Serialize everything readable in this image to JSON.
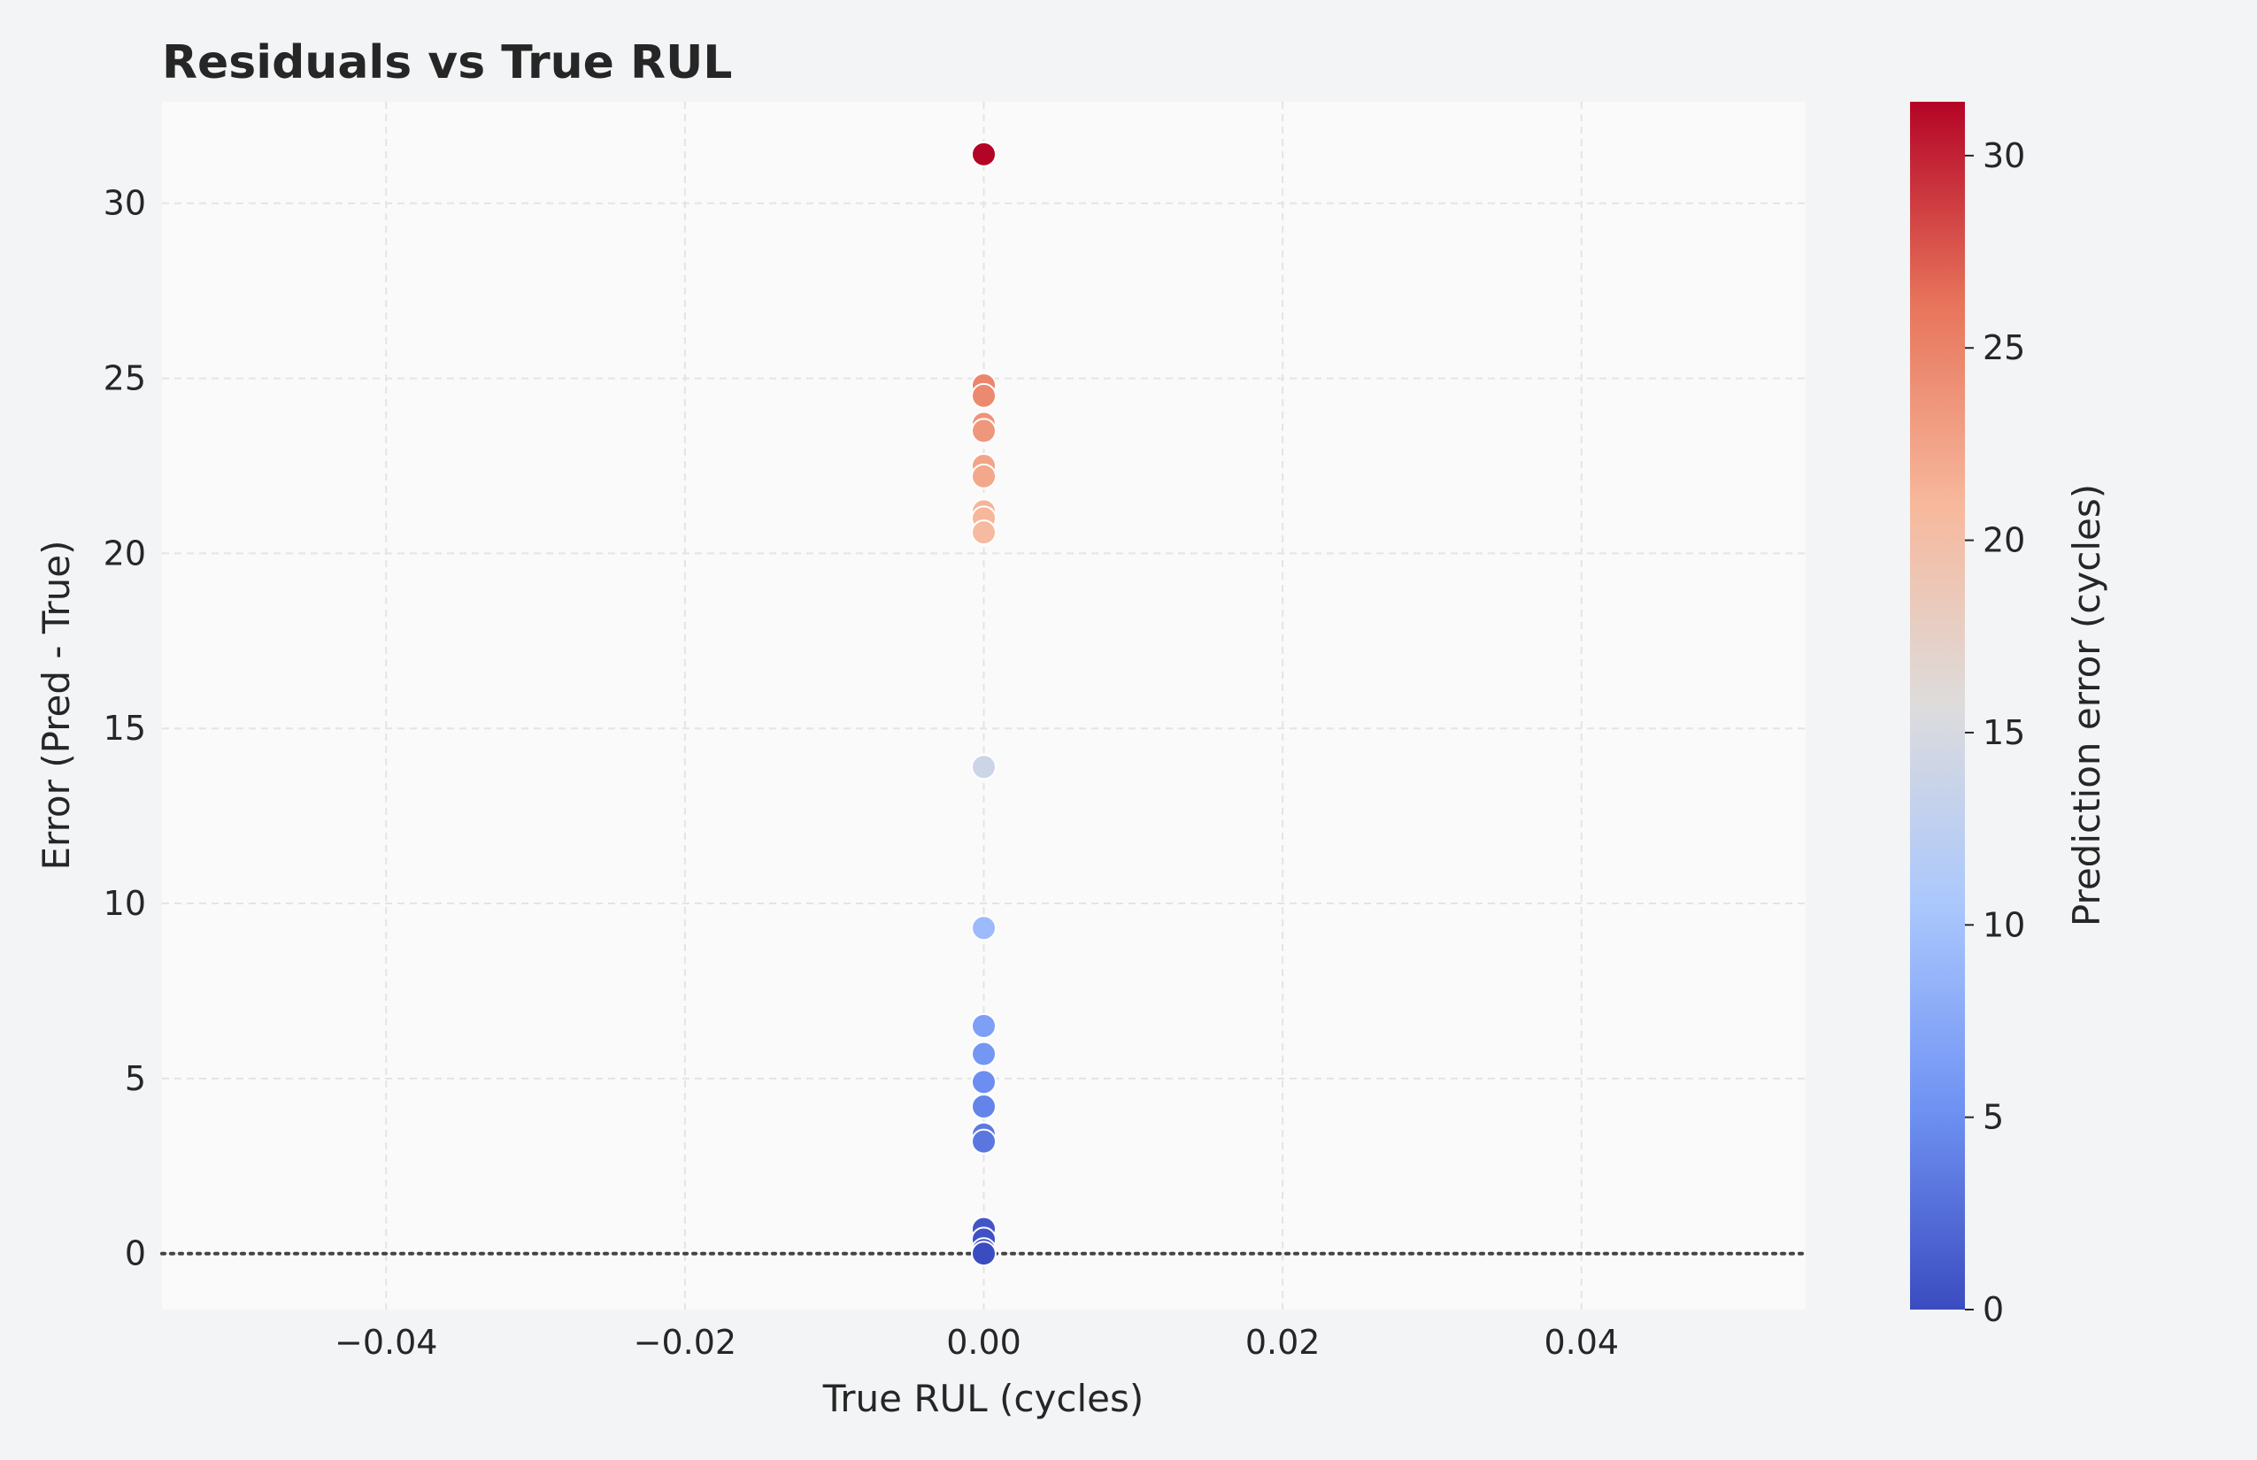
{
  "chart_data": {
    "type": "scatter",
    "title": "Residuals vs True RUL",
    "xlabel": "True RUL (cycles)",
    "ylabel": "Error (Pred - True)",
    "xlim": [
      -0.055,
      0.055
    ],
    "ylim": [
      -1.6,
      32.9
    ],
    "xticks": [
      -0.04,
      -0.02,
      0.0,
      0.02,
      0.04
    ],
    "xtick_labels": [
      "−0.04",
      "−0.02",
      "0.00",
      "0.02",
      "0.04"
    ],
    "yticks": [
      0,
      5,
      10,
      15,
      20,
      25,
      30
    ],
    "ytick_labels": [
      "0",
      "5",
      "10",
      "15",
      "20",
      "25",
      "30"
    ],
    "grid": true,
    "reference_line": {
      "y": 0,
      "style": "dotted",
      "color": "#444444"
    },
    "points": [
      {
        "x": 0,
        "y": 31.4
      },
      {
        "x": 0,
        "y": 24.8
      },
      {
        "x": 0,
        "y": 24.5
      },
      {
        "x": 0,
        "y": 23.7
      },
      {
        "x": 0,
        "y": 23.5
      },
      {
        "x": 0,
        "y": 22.5
      },
      {
        "x": 0,
        "y": 22.2
      },
      {
        "x": 0,
        "y": 21.2
      },
      {
        "x": 0,
        "y": 21.0
      },
      {
        "x": 0,
        "y": 20.6
      },
      {
        "x": 0,
        "y": 13.9
      },
      {
        "x": 0,
        "y": 9.3
      },
      {
        "x": 0,
        "y": 6.5
      },
      {
        "x": 0,
        "y": 5.7
      },
      {
        "x": 0,
        "y": 4.9
      },
      {
        "x": 0,
        "y": 4.2
      },
      {
        "x": 0,
        "y": 3.4
      },
      {
        "x": 0,
        "y": 3.2
      },
      {
        "x": 0,
        "y": 0.7
      },
      {
        "x": 0,
        "y": 0.4
      },
      {
        "x": 0,
        "y": 0.1
      },
      {
        "x": 0,
        "y": 0.0
      }
    ],
    "colorbar": {
      "label": "Prediction error (cycles)",
      "range": [
        0,
        31.4
      ],
      "ticks": [
        0,
        5,
        10,
        15,
        20,
        25,
        30
      ],
      "tick_labels": [
        "0",
        "5",
        "10",
        "15",
        "20",
        "25",
        "30"
      ],
      "colormap": "coolwarm",
      "colors": [
        "#3b4cc0",
        "#6f92f3",
        "#aac7fd",
        "#dddcdc",
        "#f7b89c",
        "#e7745b",
        "#b40426"
      ]
    },
    "colors": {
      "plot_background": "#fafafa",
      "figure_background": "#f3f4f6",
      "grid": "#e4e4e4",
      "point_edge": "#ffffff"
    }
  }
}
